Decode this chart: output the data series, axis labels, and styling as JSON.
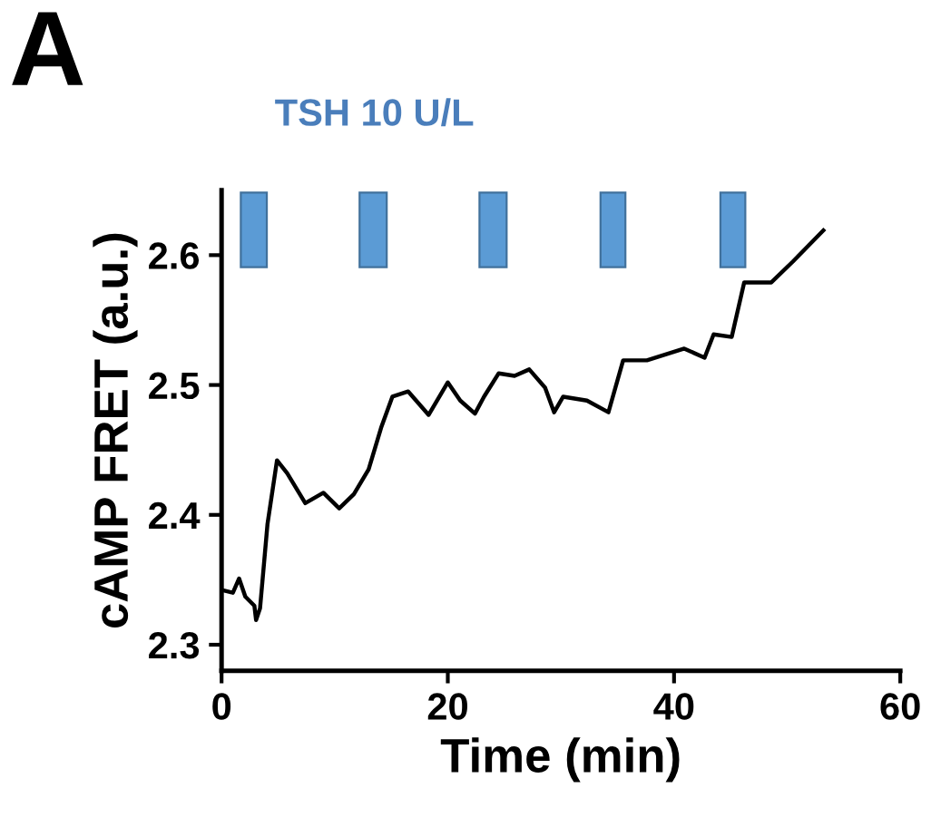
{
  "chart_data": {
    "type": "line",
    "xlabel": "Time (min)",
    "ylabel": "cAMP FRET (a.u.)",
    "annotations": [
      "A",
      "TSH 10 U/L"
    ],
    "series": [
      {
        "color": "#000000",
        "x": [
          0.1,
          1.0,
          1.55,
          2.1,
          2.9,
          3.05,
          3.4,
          4.06,
          4.9,
          5.8,
          7.4,
          9.0,
          10.4,
          11.7,
          13.0,
          14.1,
          15.1,
          16.5,
          18.3,
          20.0,
          21.1,
          22.4,
          23.2,
          24.5,
          25.9,
          27.2,
          28.6,
          29.4,
          30.2,
          32.3,
          34.2,
          35.5,
          37.6,
          40.9,
          42.7,
          43.5,
          45.1,
          46.2,
          48.6,
          50.5,
          53.2
        ],
        "values": [
          2.342,
          2.34,
          2.351,
          2.337,
          2.33,
          2.319,
          2.328,
          2.393,
          2.442,
          2.432,
          2.409,
          2.417,
          2.405,
          2.416,
          2.435,
          2.467,
          2.491,
          2.495,
          2.477,
          2.502,
          2.488,
          2.478,
          2.491,
          2.509,
          2.507,
          2.512,
          2.498,
          2.479,
          2.491,
          2.488,
          2.479,
          2.519,
          2.519,
          2.528,
          2.521,
          2.539,
          2.537,
          2.579,
          2.579,
          2.595,
          2.619
        ]
      }
    ],
    "bands": [
      {
        "axis": "x",
        "from": 1.7,
        "to": 4.0,
        "color": "#5b9bd5"
      },
      {
        "axis": "x",
        "from": 12.2,
        "to": 14.6,
        "color": "#5b9bd5"
      },
      {
        "axis": "x",
        "from": 22.8,
        "to": 25.2,
        "color": "#5b9bd5"
      },
      {
        "axis": "x",
        "from": 33.5,
        "to": 35.7,
        "color": "#5b9bd5"
      },
      {
        "axis": "x",
        "from": 44.1,
        "to": 46.3,
        "color": "#5b9bd5"
      }
    ],
    "xlim": [
      0,
      60
    ],
    "xticks": [
      0,
      20,
      40,
      60
    ],
    "ylim": [
      2.28,
      2.65
    ],
    "yticks": [
      2.3,
      2.4,
      2.5,
      2.6
    ],
    "grid": false,
    "legend": false,
    "marker": "none",
    "line_style": "solid"
  }
}
